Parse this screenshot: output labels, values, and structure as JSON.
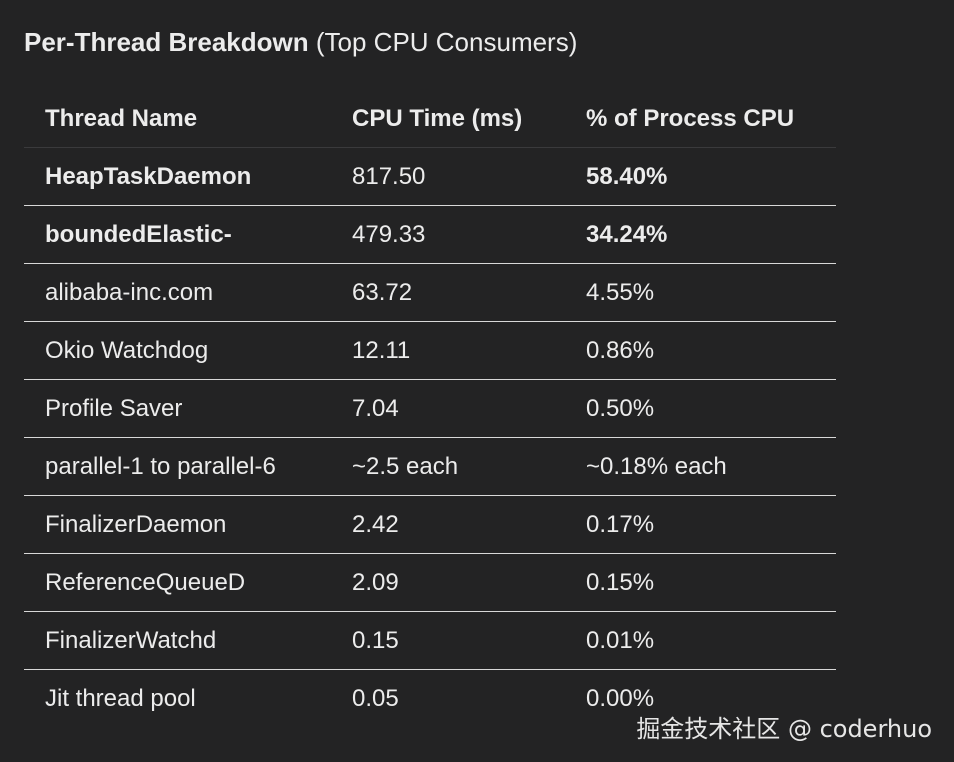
{
  "heading": {
    "strong": "Per-Thread Breakdown",
    "normal": " (Top CPU Consumers)"
  },
  "table": {
    "columns": [
      "Thread Name",
      "CPU Time (ms)",
      "% of Process CPU"
    ],
    "rows": [
      {
        "name": "HeapTaskDaemon",
        "cpu_time": "817.50",
        "percent": "58.40%",
        "emphasis": true
      },
      {
        "name": "boundedElastic-",
        "cpu_time": "479.33",
        "percent": "34.24%",
        "emphasis": true
      },
      {
        "name": "alibaba-inc.com",
        "cpu_time": "63.72",
        "percent": "4.55%",
        "emphasis": false
      },
      {
        "name": "Okio Watchdog",
        "cpu_time": "12.11",
        "percent": "0.86%",
        "emphasis": false
      },
      {
        "name": "Profile Saver",
        "cpu_time": "7.04",
        "percent": "0.50%",
        "emphasis": false
      },
      {
        "name": "parallel-1 to parallel-6",
        "cpu_time": "~2.5 each",
        "percent": "~0.18% each",
        "emphasis": false
      },
      {
        "name": "FinalizerDaemon",
        "cpu_time": "2.42",
        "percent": "0.17%",
        "emphasis": false
      },
      {
        "name": "ReferenceQueueD",
        "cpu_time": "2.09",
        "percent": "0.15%",
        "emphasis": false
      },
      {
        "name": "FinalizerWatchd",
        "cpu_time": "0.15",
        "percent": "0.01%",
        "emphasis": false
      },
      {
        "name": "Jit thread pool",
        "cpu_time": "0.05",
        "percent": "0.00%",
        "emphasis": false
      }
    ]
  },
  "watermark": "掘金技术社区 @ coderhuo"
}
